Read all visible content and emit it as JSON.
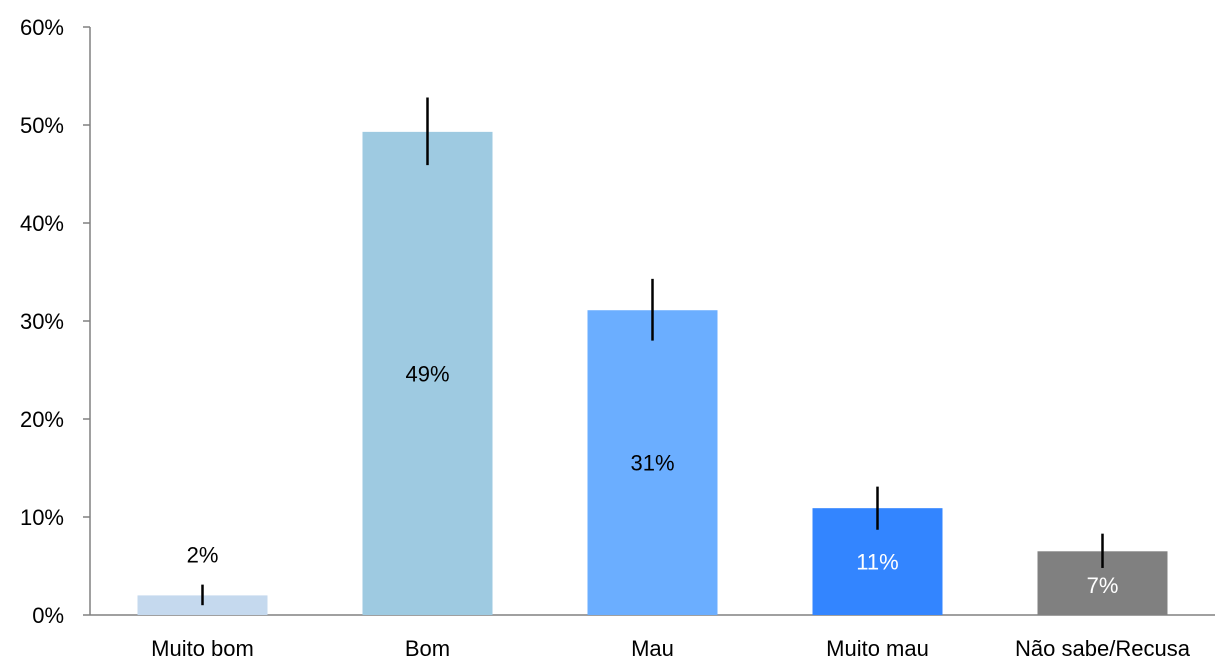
{
  "chart_data": {
    "type": "bar",
    "title": "",
    "xlabel": "",
    "ylabel": "",
    "ylim": [
      0,
      0.6
    ],
    "yticks": [
      0,
      0.1,
      0.2,
      0.3,
      0.4,
      0.5,
      0.6
    ],
    "ytick_labels": [
      "0%",
      "10%",
      "20%",
      "30%",
      "40%",
      "50%",
      "60%"
    ],
    "grid": false,
    "legend": "none",
    "categories": [
      "Muito bom",
      "Bom",
      "Mau",
      "Muito mau",
      "Não sabe/Recusa"
    ],
    "values": [
      0.02,
      0.493,
      0.311,
      0.109,
      0.065
    ],
    "data_labels": [
      "2%",
      "49%",
      "31%",
      "11%",
      "7%"
    ],
    "error_bars": [
      [
        0.01,
        0.031
      ],
      [
        0.459,
        0.528
      ],
      [
        0.28,
        0.343
      ],
      [
        0.087,
        0.131
      ],
      [
        0.048,
        0.083
      ]
    ],
    "colors": [
      "#c5d9ee",
      "#9ecae1",
      "#6baeff",
      "#3385ff",
      "#808080"
    ],
    "label_colors": [
      "#000000",
      "#000000",
      "#000000",
      "#ffffff",
      "#ffffff"
    ],
    "label_positions": [
      "outside",
      "inside",
      "inside",
      "inside",
      "inside"
    ]
  }
}
